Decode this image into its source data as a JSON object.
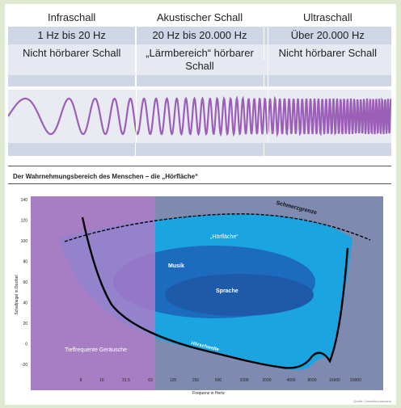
{
  "table": {
    "headers": [
      "Infraschall",
      "Akustischer Schall",
      "Ultraschall"
    ],
    "ranges": [
      "1 Hz bis 20 Hz",
      "20 Hz bis 20.000 Hz",
      "Über 20.000 Hz"
    ],
    "descriptions": [
      "Nicht hörbarer Schall",
      "„Lärmbereich“ hörbarer Schall",
      "Nicht hörbarer Schall"
    ]
  },
  "wave": {
    "color": "#9b5fb8"
  },
  "chart": {
    "title": "Der Wahrnehmungsbereich des Menschen – die „Hörfläche“",
    "ylabel": "Schallpegel in Dezibel",
    "xlabel": "Frequenz in Hertz",
    "y_ticks": [
      "140",
      "120",
      "100",
      "80",
      "60",
      "40",
      "20",
      "0",
      "-20"
    ],
    "x_ticks": [
      "8",
      "16",
      "31,5",
      "63",
      "125",
      "250",
      "500",
      "1000",
      "2000",
      "4000",
      "8000",
      "16000",
      "20000"
    ],
    "labels": {
      "hoerflaeche": "„Hörfläche“",
      "schmerzgrenze": "Schmerzgrenze",
      "musik": "Musik",
      "sprache": "Sprache",
      "hoerschwelle": "Hörschwelle",
      "tieffrequent": "Tieffrequente Geräusche"
    },
    "source": "Quelle: Umweltbundesamt",
    "colors": {
      "background": "#7f8ab0",
      "hoerflaeche": "#1aa4e0",
      "musik": "#1c6bbf",
      "sprache": "#1f5aa8",
      "tieffrequent": "#b07ac8"
    }
  }
}
